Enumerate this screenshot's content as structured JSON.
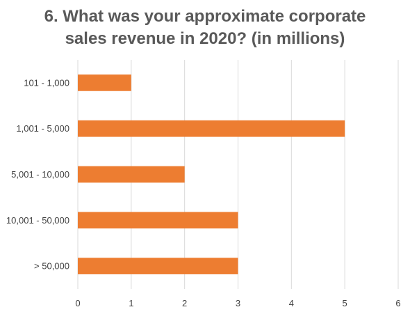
{
  "chart_data": {
    "type": "bar",
    "orientation": "horizontal",
    "title": [
      "6. What was your approximate corporate",
      "sales revenue in 2020? (in millions)"
    ],
    "categories": [
      "101 - 1,000",
      "1,001 - 5,000",
      "5,001 - 10,000",
      "10,001 - 50,000",
      "> 50,000"
    ],
    "values": [
      1,
      5,
      2,
      3,
      3
    ],
    "xlim": [
      0,
      6
    ],
    "x_ticks": [
      "0",
      "1",
      "2",
      "3",
      "4",
      "5",
      "6"
    ],
    "grid": "vertical",
    "legend": "none",
    "bar_color": "#ED7D31",
    "grid_color": "#D9D9D9"
  }
}
